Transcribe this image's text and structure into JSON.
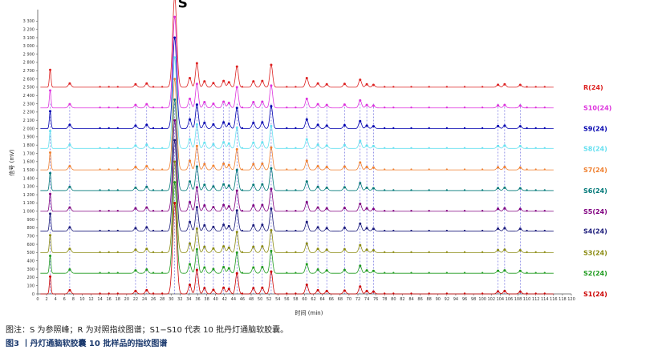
{
  "chart_data": {
    "type": "line",
    "xlabel": "时间 (min)",
    "ylabel": "信号 (mV)",
    "xlim": [
      0,
      120
    ],
    "ylim": [
      0,
      3400
    ],
    "x_ticks": [
      0,
      2,
      4,
      6,
      8,
      10,
      12,
      14,
      16,
      18,
      20,
      22,
      24,
      26,
      28,
      30,
      32,
      34,
      36,
      38,
      40,
      42,
      44,
      46,
      48,
      50,
      52,
      54,
      56,
      58,
      60,
      62,
      64,
      66,
      68,
      70,
      72,
      74,
      76,
      78,
      80,
      82,
      84,
      86,
      88,
      90,
      92,
      94,
      96,
      98,
      100,
      102,
      104,
      106,
      108,
      110,
      112,
      114,
      116,
      118,
      120
    ],
    "y_ticks": [
      0,
      100,
      200,
      300,
      400,
      500,
      600,
      700,
      800,
      900,
      1000,
      1100,
      1200,
      1300,
      1400,
      1500,
      1600,
      1700,
      1800,
      1900,
      2000,
      2100,
      2200,
      2300,
      2400,
      2500,
      2600,
      2700,
      2800,
      2900,
      3000,
      3100,
      3200,
      3300
    ],
    "y_tick_labels": [
      "0",
      "100",
      "200",
      "300",
      "400",
      "500",
      "600",
      "700",
      "800",
      "900",
      "1 000",
      "1 100",
      "1 200",
      "1 300",
      "1 400",
      "1 500",
      "1 600",
      "1 700",
      "1 800",
      "1 900",
      "2 000",
      "2 100",
      "2 200",
      "2 300",
      "2 400",
      "2 500",
      "2 600",
      "2 700",
      "2 800",
      "2 900",
      "3 000",
      "3 100",
      "3 200",
      "3 300"
    ],
    "reference_peak_label": "S",
    "reference_peak_x": 30.8,
    "peak_times": [
      2.8,
      7.2,
      22.0,
      24.5,
      30.8,
      34.2,
      35.8,
      37.5,
      39.5,
      41.8,
      43.0,
      44.8,
      48.5,
      50.5,
      52.5,
      60.5,
      63.0,
      65.0,
      69.0,
      72.5,
      74.0,
      75.5,
      103.5,
      105.0,
      108.5
    ],
    "peak_heights": [
      210,
      45,
      35,
      45,
      1100,
      110,
      290,
      70,
      50,
      75,
      60,
      250,
      70,
      75,
      270,
      110,
      45,
      35,
      40,
      90,
      35,
      28,
      30,
      35,
      28
    ],
    "series": [
      {
        "name": "S1(24)",
        "baseline": 0,
        "color": "#cc0000"
      },
      {
        "name": "S2(24)",
        "baseline": 250,
        "color": "#1f9b1f"
      },
      {
        "name": "S3(24)",
        "baseline": 500,
        "color": "#8a8a10"
      },
      {
        "name": "S4(24)",
        "baseline": 760,
        "color": "#1a1a7a"
      },
      {
        "name": "S5(24)",
        "baseline": 1000,
        "color": "#800080"
      },
      {
        "name": "S6(24)",
        "baseline": 1250,
        "color": "#007878"
      },
      {
        "name": "S7(24)",
        "baseline": 1500,
        "color": "#f08030"
      },
      {
        "name": "S8(24)",
        "baseline": 1760,
        "color": "#66e0f0"
      },
      {
        "name": "S9(24)",
        "baseline": 2000,
        "color": "#0000b0"
      },
      {
        "name": "S10(24)",
        "baseline": 2250,
        "color": "#dd33dd"
      },
      {
        "name": "R(24)",
        "baseline": 2500,
        "color": "#dd2222"
      }
    ],
    "grid": false,
    "legend": "right"
  },
  "caption": {
    "note": "图注：S 为参照峰；R 为对照指纹图谱；S1−S10 代表 10 批丹灯通脑软胶囊。",
    "title": "图3 丨丹灯通脑软胶囊 10 批样品的指纹图谱"
  }
}
